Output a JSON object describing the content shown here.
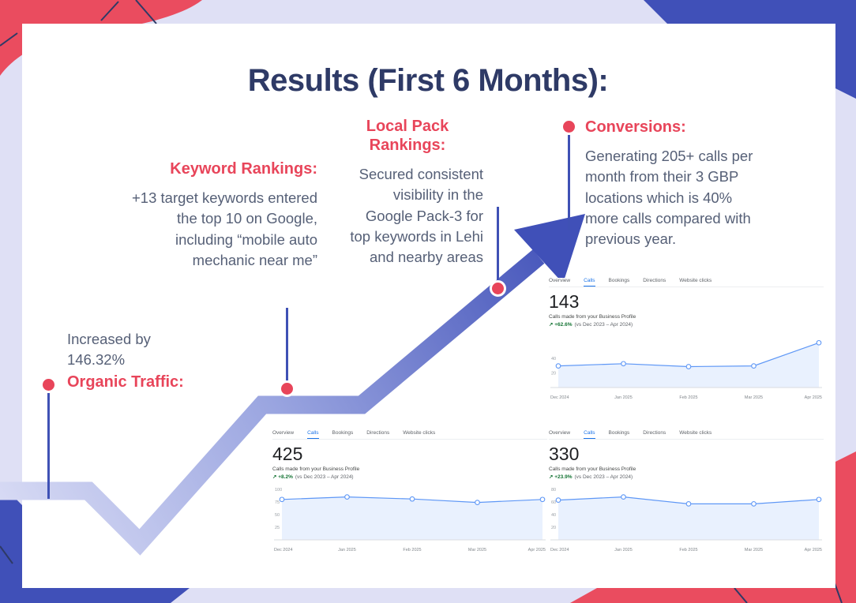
{
  "page": {
    "title": "Results (First 6 Months):"
  },
  "palette": {
    "accent_red": "#e8455a",
    "navy_title": "#2e3a66",
    "body_text": "#566077",
    "arrow_blue": "#4050b8",
    "arrow_light": "#d7daf4",
    "background_lavender": "#dfe0f5",
    "google_tab_blue": "#1a73e8",
    "chart_line_blue": "#5e97f6",
    "chart_fill_blue": "#e9f1fe",
    "trend_green": "#137333"
  },
  "milestones": {
    "organic": {
      "label": "Organic Traffic:",
      "text": "Increased by\n146.32%"
    },
    "keyword": {
      "label": "Keyword Rankings:",
      "text": "+13 target keywords entered\nthe top 10 on Google,\nincluding “mobile auto\nmechanic near me”"
    },
    "local_pack": {
      "label": "Local Pack\nRankings:",
      "text": "Secured consistent\nvisibility in the\nGoogle Pack-3 for\ntop keywords in Lehi\nand nearby areas"
    },
    "conversions": {
      "label": "Conversions:",
      "text": "Generating 205+ calls per\nmonth from their 3 GBP\nlocations which is 40%\nmore calls compared with\nprevious year."
    }
  },
  "chart_data": [
    {
      "type": "area",
      "name": "gbp-calls-chart-143",
      "tabs": [
        "Overview",
        "Calls",
        "Bookings",
        "Directions",
        "Website clicks"
      ],
      "active_tab": "Calls",
      "metric": "143",
      "subtitle": "Calls made from your Business Profile",
      "trend_arrow": "↗",
      "trend_delta": "+62.6%",
      "trend_period": "(vs Dec 2023 – Apr 2024)",
      "x": [
        "Dec 2024",
        "Jan 2025",
        "Feb 2025",
        "Mar 2025",
        "Apr 2025"
      ],
      "values": [
        30,
        33,
        29,
        30,
        62
      ],
      "ylim": [
        0,
        70
      ],
      "yticks": [
        40,
        20
      ]
    },
    {
      "type": "area",
      "name": "gbp-calls-chart-425",
      "tabs": [
        "Overview",
        "Calls",
        "Bookings",
        "Directions",
        "Website clicks"
      ],
      "active_tab": "Calls",
      "metric": "425",
      "subtitle": "Calls made from your Business Profile",
      "trend_arrow": "↗",
      "trend_delta": "+8.2%",
      "trend_period": "(vs Dec 2023 – Apr 2024)",
      "x": [
        "Dec 2024",
        "Jan 2025",
        "Feb 2025",
        "Mar 2025",
        "Apr 2025"
      ],
      "values": [
        80,
        85,
        81,
        74,
        80
      ],
      "ylim": [
        0,
        100
      ],
      "yticks": [
        100,
        75,
        50,
        25
      ]
    },
    {
      "type": "area",
      "name": "gbp-calls-chart-330",
      "tabs": [
        "Overview",
        "Calls",
        "Bookings",
        "Directions",
        "Website clicks"
      ],
      "active_tab": "Calls",
      "metric": "330",
      "subtitle": "Calls made from your Business Profile",
      "trend_arrow": "↗",
      "trend_delta": "+23.9%",
      "trend_period": "(vs Dec 2023 – Apr 2024)",
      "x": [
        "Dec 2024",
        "Jan 2025",
        "Feb 2025",
        "Mar 2025",
        "Apr 2025"
      ],
      "values": [
        63,
        68,
        57,
        57,
        64
      ],
      "ylim": [
        0,
        80
      ],
      "yticks": [
        80,
        60,
        40,
        20
      ]
    }
  ]
}
